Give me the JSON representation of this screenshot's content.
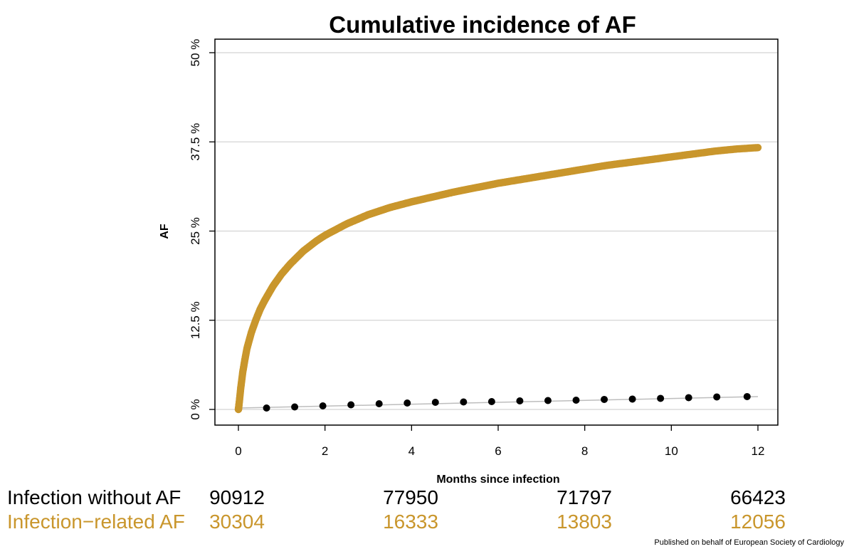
{
  "chart_data": {
    "type": "scatter",
    "title": "Cumulative incidence of AF",
    "xlabel": "Months since infection",
    "ylabel": "AF",
    "xlim": [
      0,
      12
    ],
    "ylim": [
      0,
      50
    ],
    "x_ticks": [
      "0",
      "2",
      "4",
      "6",
      "8",
      "10",
      "12"
    ],
    "y_ticks": [
      "0 %",
      "12.5 %",
      "25 %",
      "37.5 %",
      "50 %"
    ],
    "grid": "horizontal",
    "series": [
      {
        "color": "#C9962C",
        "style": "dense-dots",
        "x": [
          0,
          0.02,
          0.05,
          0.1,
          0.15,
          0.2,
          0.3,
          0.4,
          0.5,
          0.6,
          0.8,
          1.0,
          1.2,
          1.5,
          1.8,
          2.0,
          2.5,
          3.0,
          3.5,
          4.0,
          4.5,
          5.0,
          5.5,
          6.0,
          6.5,
          7.0,
          7.5,
          8.0,
          8.5,
          9.0,
          9.5,
          10.0,
          10.5,
          11.0,
          11.5,
          12.0
        ],
        "y": [
          0,
          1.0,
          2.8,
          5.2,
          7.0,
          8.6,
          10.8,
          12.5,
          14.0,
          15.2,
          17.3,
          19.0,
          20.4,
          22.2,
          23.6,
          24.4,
          26.0,
          27.3,
          28.3,
          29.1,
          29.8,
          30.5,
          31.1,
          31.7,
          32.2,
          32.7,
          33.2,
          33.7,
          34.2,
          34.6,
          35.0,
          35.4,
          35.8,
          36.2,
          36.5,
          36.7
        ]
      },
      {
        "color": "#000000",
        "style": "dots-with-line",
        "x": [
          0.65,
          1.3,
          1.95,
          2.6,
          3.25,
          3.9,
          4.55,
          5.2,
          5.85,
          6.5,
          7.15,
          7.8,
          8.45,
          9.1,
          9.75,
          10.4,
          11.05,
          11.75
        ],
        "y": [
          0.2,
          0.35,
          0.5,
          0.65,
          0.8,
          0.9,
          1.0,
          1.05,
          1.1,
          1.2,
          1.25,
          1.3,
          1.4,
          1.45,
          1.55,
          1.65,
          1.75,
          1.8
        ],
        "fit_x": [
          0,
          12
        ],
        "fit_y": [
          0.2,
          1.8
        ]
      }
    ]
  },
  "risk_table": {
    "rows": [
      {
        "label": "Infection without AF",
        "color": "#000000",
        "values": [
          "90912",
          "77950",
          "71797",
          "66423"
        ]
      },
      {
        "label": "Infection−related AF",
        "color": "#C9962C",
        "values": [
          "30304",
          "16333",
          "13803",
          "12056"
        ]
      }
    ]
  },
  "credit": "Published on behalf of European Society of Cardiology"
}
